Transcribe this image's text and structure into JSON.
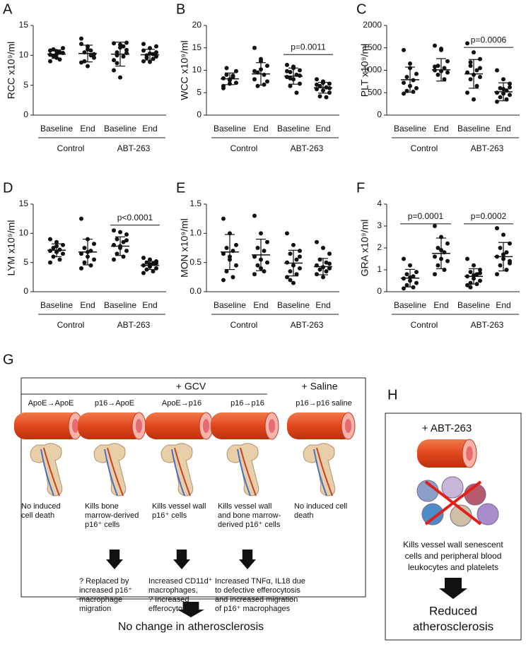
{
  "chart_data": [
    {
      "type": "dot",
      "panel": "A",
      "ylabel": "RCC x10⁹/ml",
      "categories": [
        "Baseline",
        "End",
        "Baseline",
        "End"
      ],
      "groups": [
        "Control",
        "ABT-263"
      ],
      "values": [
        [
          10.1,
          9.6,
          10.4,
          11.0,
          9.3,
          10.8,
          10.2,
          11.2,
          9.9,
          10.5,
          9.0,
          10.7
        ],
        [
          12.8,
          11.5,
          10.2,
          9.0,
          10.8,
          11.9,
          8.2,
          9.6,
          10.5,
          10.0,
          8.8,
          11.0
        ],
        [
          12.0,
          11.3,
          12.1,
          10.5,
          9.8,
          7.5,
          6.3,
          10.9,
          8.7,
          11.5,
          9.2,
          11.8,
          10.4,
          10.0
        ],
        [
          11.9,
          11.2,
          10.5,
          9.6,
          10.2,
          9.0,
          8.9,
          11.5,
          10.0,
          9.4,
          10.8,
          10.3,
          9.8
        ]
      ],
      "mean": [
        10.2,
        10.3,
        10.2,
        10.1
      ],
      "sd": [
        0.7,
        1.4,
        2.0,
        0.9
      ],
      "ylim": [
        0,
        15
      ],
      "yticks": [
        0,
        5,
        10,
        15
      ],
      "annotations": []
    },
    {
      "type": "dot",
      "panel": "B",
      "ylabel": "WCC x10⁹/ml",
      "categories": [
        "Baseline",
        "End",
        "Baseline",
        "End"
      ],
      "groups": [
        "Control",
        "ABT-263"
      ],
      "values": [
        [
          8.2,
          7.0,
          9.8,
          10.5,
          8.8,
          6.5,
          7.8,
          7.2,
          9.0,
          8.5,
          6.0,
          8.0
        ],
        [
          15.0,
          12.5,
          11.0,
          9.5,
          9.0,
          8.0,
          10.2,
          7.5,
          6.5,
          6.8,
          9.8,
          12.0
        ],
        [
          11.2,
          10.5,
          10.0,
          9.6,
          9.0,
          8.5,
          8.0,
          7.0,
          6.5,
          5.0,
          9.8,
          10.8,
          8.8,
          8.2
        ],
        [
          8.0,
          7.5,
          7.0,
          6.5,
          6.2,
          5.8,
          5.5,
          5.0,
          4.2,
          4.0,
          6.8,
          7.2,
          6.0
        ]
      ],
      "mean": [
        8.1,
        9.2,
        8.7,
        6.1
      ],
      "sd": [
        1.3,
        2.5,
        1.8,
        1.2
      ],
      "ylim": [
        0,
        20
      ],
      "yticks": [
        0,
        5,
        10,
        15,
        20
      ],
      "annotations": [
        {
          "text": "p=0.0011",
          "y": 13.5,
          "span": [
            2,
            3
          ]
        }
      ]
    },
    {
      "type": "dot",
      "panel": "C",
      "ylabel": "PLT x10⁹/ml",
      "categories": [
        "Baseline",
        "End",
        "Baseline",
        "End"
      ],
      "groups": [
        "Control",
        "ABT-263"
      ],
      "values": [
        [
          1450,
          1050,
          920,
          850,
          780,
          720,
          650,
          600,
          540,
          520,
          480,
          1150
        ],
        [
          1550,
          1450,
          1200,
          1100,
          1050,
          1000,
          980,
          950,
          900,
          800,
          1080,
          1480
        ],
        [
          1600,
          1400,
          1250,
          1100,
          1000,
          950,
          900,
          850,
          800,
          650,
          500,
          350,
          1050,
          1180
        ],
        [
          1000,
          800,
          700,
          600,
          550,
          500,
          480,
          450,
          400,
          350,
          300,
          580,
          620
        ]
      ],
      "mean": [
        790,
        1010,
        920,
        520
      ],
      "sd": [
        280,
        250,
        320,
        200
      ],
      "ylim": [
        0,
        2000
      ],
      "yticks": [
        0,
        500,
        1000,
        1500,
        2000
      ],
      "annotations": [
        {
          "text": "p=0.0006",
          "y": 1510,
          "span": [
            2,
            3
          ]
        }
      ]
    },
    {
      "type": "dot",
      "panel": "D",
      "ylabel": "LYM x10⁹/ml",
      "categories": [
        "Baseline",
        "End",
        "Baseline",
        "End"
      ],
      "groups": [
        "Control",
        "ABT-263"
      ],
      "values": [
        [
          9.0,
          8.5,
          8.0,
          7.5,
          7.2,
          7.0,
          6.8,
          6.5,
          6.0,
          5.5,
          5.0,
          7.8
        ],
        [
          12.5,
          9.0,
          8.2,
          7.5,
          7.0,
          6.5,
          6.0,
          5.5,
          5.0,
          4.5,
          4.0,
          6.8
        ],
        [
          10.5,
          10.2,
          9.8,
          9.0,
          8.5,
          8.0,
          7.5,
          7.0,
          6.5,
          6.0,
          5.5,
          7.8,
          8.8
        ],
        [
          5.8,
          5.5,
          5.2,
          5.0,
          4.8,
          4.5,
          4.3,
          4.0,
          3.8,
          3.5,
          3.2,
          4.7,
          4.9
        ]
      ],
      "mean": [
        7.1,
        6.8,
        7.8,
        4.5
      ],
      "sd": [
        1.1,
        2.2,
        1.6,
        0.7
      ],
      "ylim": [
        0,
        15
      ],
      "yticks": [
        0,
        5,
        10,
        15
      ],
      "annotations": [
        {
          "text": "p<0.0001",
          "y": 11.4,
          "span": [
            2,
            3
          ]
        }
      ]
    },
    {
      "type": "dot",
      "panel": "E",
      "ylabel": "MON  x10⁹/ml",
      "categories": [
        "Baseline",
        "End",
        "Baseline",
        "End"
      ],
      "groups": [
        "Control",
        "ABT-263"
      ],
      "values": [
        [
          1.25,
          1.0,
          0.8,
          0.75,
          0.7,
          0.65,
          0.55,
          0.45,
          0.35,
          0.25,
          0.2,
          0.6
        ],
        [
          1.3,
          1.0,
          0.85,
          0.75,
          0.7,
          0.6,
          0.55,
          0.5,
          0.45,
          0.35,
          0.3,
          0.4
        ],
        [
          1.0,
          0.8,
          0.7,
          0.65,
          0.55,
          0.5,
          0.45,
          0.4,
          0.35,
          0.3,
          0.25,
          0.15,
          0.6,
          0.2
        ],
        [
          0.85,
          0.75,
          0.65,
          0.55,
          0.5,
          0.45,
          0.42,
          0.4,
          0.38,
          0.35,
          0.3,
          0.25,
          0.48
        ]
      ],
      "mean": [
        0.68,
        0.63,
        0.49,
        0.43
      ],
      "sd": [
        0.3,
        0.27,
        0.22,
        0.14
      ],
      "ylim": [
        0,
        1.5
      ],
      "yticks": [
        {
          "value": 0,
          "label": "0.0"
        },
        0.5,
        {
          "value": 1,
          "label": "1.0"
        },
        1.5
      ],
      "annotations": []
    },
    {
      "type": "dot",
      "panel": "F",
      "ylabel": "GRA  x10⁹/ml",
      "categories": [
        "Baseline",
        "End",
        "Baseline",
        "End"
      ],
      "groups": [
        "Control",
        "ABT-263"
      ],
      "values": [
        [
          1.5,
          1.2,
          0.9,
          0.8,
          0.7,
          0.6,
          0.5,
          0.4,
          0.3,
          0.2,
          0.15,
          0.65
        ],
        [
          3.0,
          2.5,
          2.2,
          2.0,
          1.8,
          1.6,
          1.5,
          1.4,
          1.2,
          1.0,
          0.8,
          1.9
        ],
        [
          1.5,
          1.2,
          1.0,
          0.9,
          0.8,
          0.7,
          0.6,
          0.5,
          0.4,
          0.35,
          0.3,
          0.75,
          0.85,
          0.2
        ],
        [
          2.9,
          2.6,
          2.2,
          2.0,
          1.8,
          1.6,
          1.5,
          1.4,
          1.2,
          1.0,
          0.8,
          1.7,
          1.3
        ]
      ],
      "mean": [
        0.62,
        1.75,
        0.7,
        1.6
      ],
      "sd": [
        0.4,
        0.7,
        0.35,
        0.65
      ],
      "ylim": [
        0,
        4
      ],
      "yticks": [
        0,
        1,
        2,
        3,
        4
      ],
      "annotations": [
        {
          "text": "p=0.0001",
          "y": 3.1,
          "span": [
            0,
            1
          ]
        },
        {
          "text": "p=0.0002",
          "y": 3.1,
          "span": [
            2,
            3
          ]
        }
      ]
    }
  ],
  "panel_g": {
    "letter": "G",
    "treatment": "+ GCV",
    "control": "+ Saline",
    "columns": [
      "ApoE→ApoE",
      "p16→ApoE",
      "ApoE→p16",
      "p16→p16",
      "p16→p16 saline"
    ],
    "effects": [
      [
        "No induced",
        "cell death"
      ],
      [
        "Kills bone",
        "marrow-derived",
        "p16⁺ cells"
      ],
      [
        "Kills vessel wall",
        "p16⁺ cells"
      ],
      [
        "Kills vessel wall",
        "and bone marrow-",
        "derived p16⁺ cells"
      ],
      [
        "No induced cell",
        "death"
      ]
    ],
    "outcomes": [
      [
        "? Replaced by",
        "increased p16⁺",
        "macrophage",
        "migration"
      ],
      [
        "Increased CD11d⁺",
        "macrophages,",
        "? Increased",
        "efferocytosis"
      ],
      [
        "Increased TNFα, IL18 due",
        "to defective efferocytosis",
        "and increased migration",
        "of p16⁺ macrophages"
      ]
    ],
    "conclusion": "No change in atherosclerosis"
  },
  "panel_h": {
    "letter": "H",
    "treatment": "+ ABT-263",
    "effect": [
      "Kills vessel wall senescent",
      "cells and peripheral blood",
      "leukocytes and platelets"
    ],
    "conclusion": [
      "Reduced",
      "atherosclerosis"
    ]
  }
}
